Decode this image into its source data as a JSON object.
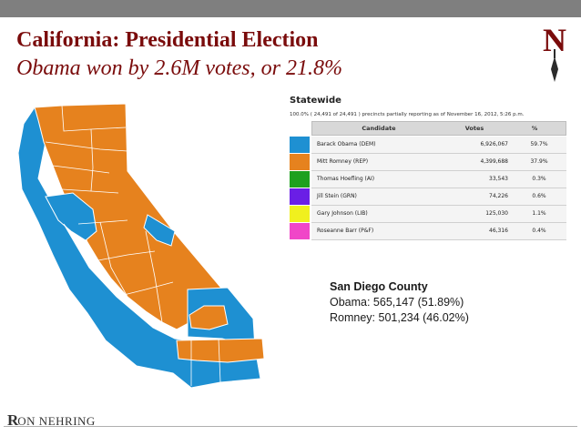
{
  "slide": {
    "title": "California: Presidential Election",
    "subtitle": "Obama won by 2.6M votes, or 21.8%",
    "colors": {
      "header_bar": "#7f7f7f",
      "title": "#7a0b0b",
      "democrat": "#1e90d2",
      "republican": "#e6821e"
    }
  },
  "logo": {
    "icon": "compass-n-logo-icon",
    "letter": "N"
  },
  "results": {
    "title": "Statewide",
    "note": "100.0% ( 24,491 of 24,491 ) precincts partially reporting as of November 16, 2012, 5:26 p.m.",
    "headers": {
      "candidate": "Candidate",
      "votes": "Votes",
      "pct": "%"
    },
    "rows": [
      {
        "color": "#1e90d2",
        "candidate": "Barack Obama (DEM)",
        "votes": "6,926,067",
        "pct": "59.7%"
      },
      {
        "color": "#e6821e",
        "candidate": "Mitt Romney (REP)",
        "votes": "4,399,688",
        "pct": "37.9%"
      },
      {
        "color": "#1ea01e",
        "candidate": "Thomas Hoefling (AI)",
        "votes": "33,543",
        "pct": "0.3%"
      },
      {
        "color": "#6a1ee6",
        "candidate": "Jill Stein (GRN)",
        "votes": "74,226",
        "pct": "0.6%"
      },
      {
        "color": "#f0f01e",
        "candidate": "Gary Johnson (LIB)",
        "votes": "125,030",
        "pct": "1.1%"
      },
      {
        "color": "#f046c8",
        "candidate": "Roseanne Barr (P&F)",
        "votes": "46,316",
        "pct": "0.4%"
      }
    ]
  },
  "county": {
    "name": "San Diego County",
    "obama": "Obama: 565,147 (51.89%)",
    "romney": "Romney: 501,234 (46.02%)"
  },
  "footer": {
    "logo_first": "R",
    "logo_rest": "ON NEHRING"
  }
}
